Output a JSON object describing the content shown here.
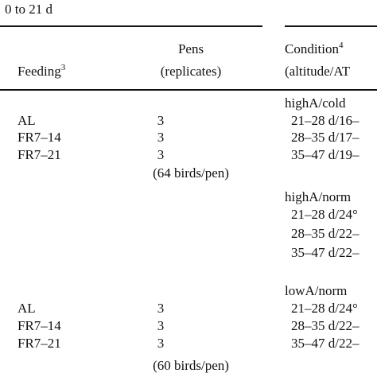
{
  "caption": "0 to 21 d",
  "header": {
    "feeding": "Feeding",
    "feeding_note": "3",
    "pens": "Pens",
    "pens_sub": "(replicates)",
    "condition": "Condition",
    "condition_note": "4",
    "condition_sub": "(altitude/AT"
  },
  "groups": [
    {
      "condition": "highA/cold",
      "rows": [
        {
          "feeding": "AL",
          "pens": "3",
          "period": "21–28 d/16–"
        },
        {
          "feeding": "FR7–14",
          "pens": "3",
          "period": "28–35 d/17–"
        },
        {
          "feeding": "FR7–21",
          "pens": "3",
          "period": "35–47 d/19–"
        }
      ],
      "note": "(64 birds/pen)"
    },
    {
      "condition": "highA/norm",
      "rows": [
        {
          "period": "21–28 d/24°"
        },
        {
          "period": "28–35 d/22–"
        },
        {
          "period": "35–47 d/22–"
        }
      ]
    },
    {
      "condition": "lowA/norm",
      "rows": [
        {
          "feeding": "AL",
          "pens": "3",
          "period": "21–28 d/24°"
        },
        {
          "feeding": "FR7–14",
          "pens": "3",
          "period": "28–35 d/22–"
        },
        {
          "feeding": "FR7–21",
          "pens": "3",
          "period": "35–47 d/22–"
        }
      ],
      "note": "(60 birds/pen)"
    }
  ]
}
